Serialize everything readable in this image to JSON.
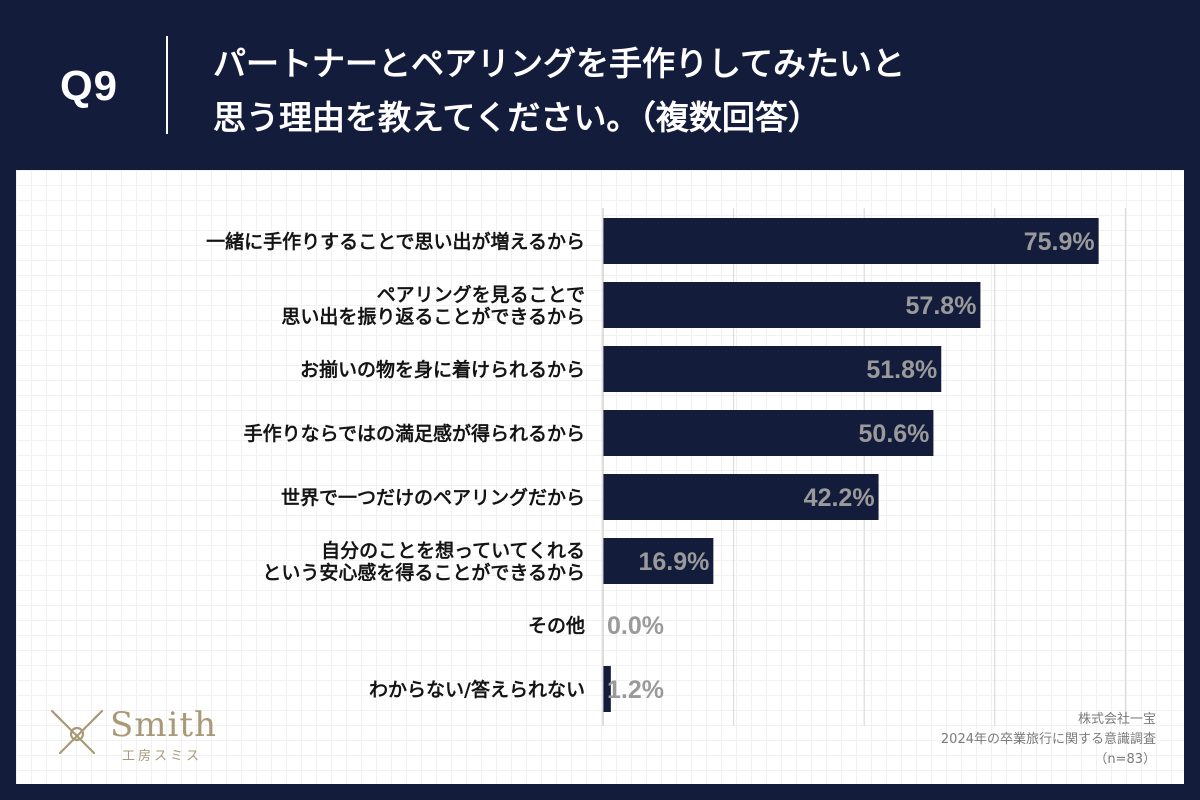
{
  "question": {
    "number": "Q9",
    "title_line1": "パートナーとペアリングを手作りしてみたいと",
    "title_line2": "思う理由を教えてください。（複数回答）"
  },
  "chart_data": {
    "type": "bar",
    "orientation": "horizontal",
    "categories": [
      [
        "一緒に手作りすることで思い出が増えるから"
      ],
      [
        "ペアリングを見ることで",
        "思い出を振り返ることができるから"
      ],
      [
        "お揃いの物を身に着けられるから"
      ],
      [
        "手作りならではの満足感が得られるから"
      ],
      [
        "世界で一つだけのペアリングだから"
      ],
      [
        "自分のことを想っていてくれる",
        "という安心感を得ることができるから"
      ],
      [
        "その他"
      ],
      [
        "わからない/答えられない"
      ]
    ],
    "values": [
      75.9,
      57.8,
      51.8,
      50.6,
      42.2,
      16.9,
      0.0,
      1.2
    ],
    "value_labels": [
      "75.9%",
      "57.8%",
      "51.8%",
      "50.6%",
      "42.2%",
      "16.9%",
      "0.0%",
      "1.2%"
    ],
    "xlim": [
      0,
      80
    ],
    "gridline_values": [
      0,
      20,
      40,
      60,
      80
    ],
    "grid": true,
    "bar_color": "#141c3c",
    "value_label_color": "#9a9a9a"
  },
  "logo": {
    "name": "Smith",
    "subtitle": "工房スミス"
  },
  "source": {
    "company": "株式会社一宝",
    "survey": "2024年の卒業旅行に関する意識調査",
    "sample": "（n=83）"
  }
}
